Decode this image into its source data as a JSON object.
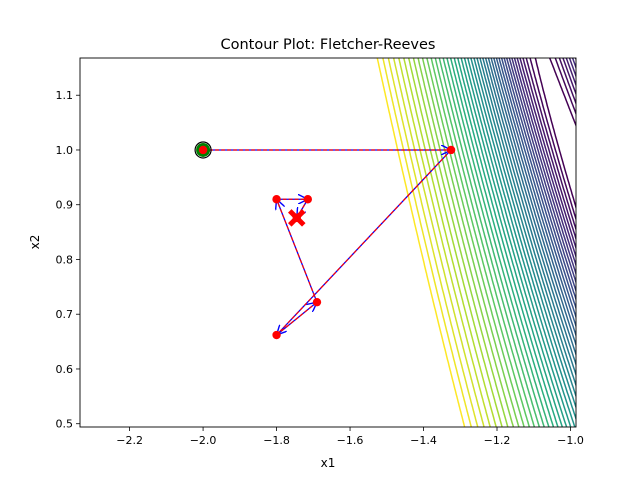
{
  "chart_data": {
    "type": "contour",
    "title": "Contour Plot: Fletcher-Reeves",
    "xlabel": "x1",
    "ylabel": "x2",
    "xlim": [
      -2.335,
      -0.985
    ],
    "ylim": [
      0.494,
      1.168
    ],
    "xticks": [
      -2.2,
      -2.0,
      -1.8,
      -1.6,
      -1.4,
      -1.2,
      -1.0
    ],
    "xtick_labels": [
      "−2.2",
      "−2.0",
      "−1.8",
      "−1.6",
      "−1.4",
      "−1.2",
      "−1.0"
    ],
    "yticks": [
      0.5,
      0.6,
      0.7,
      0.8,
      0.9,
      1.0,
      1.1
    ],
    "ytick_labels": [
      "0.5",
      "0.6",
      "0.7",
      "0.8",
      "0.9",
      "1.0",
      "1.1"
    ],
    "grid": false,
    "colormap": "viridis",
    "start_point": {
      "x": -2.0,
      "y": 1.0
    },
    "minimum_point": {
      "x": -1.745,
      "y": 0.876
    },
    "iterates": [
      {
        "x": -2.0,
        "y": 1.0
      },
      {
        "x": -1.325,
        "y": 1.0
      },
      {
        "x": -1.8,
        "y": 0.662
      },
      {
        "x": -1.69,
        "y": 0.722
      },
      {
        "x": -1.8,
        "y": 0.91
      },
      {
        "x": -1.715,
        "y": 0.91
      },
      {
        "x": -1.745,
        "y": 0.876
      }
    ],
    "colors": {
      "path_line": "#ff0000",
      "arrows": "#0000ff",
      "iterate_marker": "#ff0000",
      "start_ring": "#008000"
    }
  }
}
